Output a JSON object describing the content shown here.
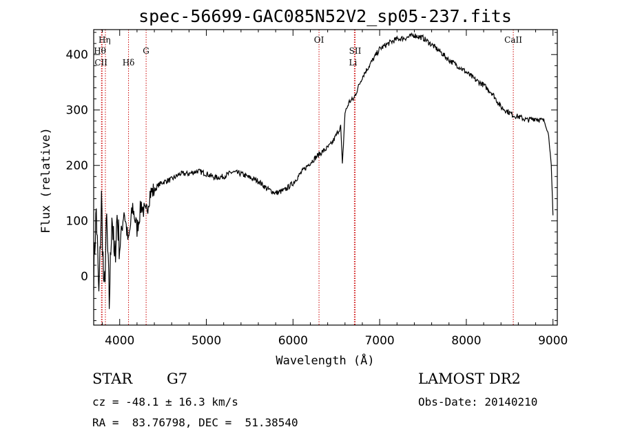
{
  "chart_data": {
    "type": "line",
    "title": "spec-56699-GAC085N52V2_sp05-237.fits",
    "xlabel": "Wavelength (Å)",
    "ylabel": "Flux (relative)",
    "xlim": [
      3700,
      9050
    ],
    "ylim": [
      -88,
      445
    ],
    "x_ticks": [
      4000,
      5000,
      6000,
      7000,
      8000,
      9000
    ],
    "y_ticks": [
      0,
      100,
      200,
      300,
      400
    ],
    "grid": false,
    "series": [
      {
        "x": [
          3700,
          3730,
          3760,
          3790,
          3820,
          3850,
          3880,
          3910,
          3940,
          3970,
          4000,
          4050,
          4100,
          4150,
          4200,
          4250,
          4300,
          4350,
          4400,
          4450,
          4500,
          4600,
          4700,
          4800,
          4900,
          5000,
          5100,
          5200,
          5300,
          5400,
          5500,
          5600,
          5700,
          5800,
          5900,
          6000,
          6100,
          6200,
          6300,
          6400,
          6450,
          6500,
          6550,
          6570,
          6600,
          6650,
          6700,
          6750,
          6800,
          6900,
          7000,
          7100,
          7200,
          7300,
          7400,
          7500,
          7600,
          7700,
          7800,
          7900,
          8000,
          8100,
          8200,
          8300,
          8400,
          8500,
          8550,
          8600,
          8700,
          8800,
          8900,
          8950,
          8980,
          9000
        ],
        "y": [
          10,
          120,
          -40,
          140,
          -40,
          100,
          -50,
          120,
          20,
          110,
          50,
          120,
          60,
          125,
          85,
          130,
          110,
          150,
          155,
          165,
          170,
          175,
          185,
          185,
          190,
          185,
          178,
          180,
          188,
          185,
          178,
          172,
          158,
          150,
          155,
          168,
          188,
          205,
          220,
          232,
          240,
          255,
          270,
          200,
          295,
          315,
          320,
          340,
          360,
          385,
          410,
          420,
          428,
          430,
          435,
          430,
          418,
          405,
          390,
          380,
          368,
          355,
          345,
          330,
          305,
          295,
          290,
          288,
          282,
          285,
          280,
          255,
          200,
          110
        ],
        "noise_note": ""
      }
    ],
    "spectral_lines": [
      {
        "label": "CII",
        "x": 3790
      },
      {
        "label": "Hθ",
        "x": 3797
      },
      {
        "label": "Hη",
        "x": 3835
      },
      {
        "label": "Hδ",
        "x": 4102
      },
      {
        "label": "G",
        "x": 4305
      },
      {
        "label": "OI",
        "x": 6300
      },
      {
        "label": "SII",
        "x": 6717
      },
      {
        "label": "Li",
        "x": 6708
      },
      {
        "label": "CaII",
        "x": 8542
      }
    ]
  },
  "info": {
    "object_class": "STAR",
    "subclass": "G7",
    "survey": "LAMOST DR2",
    "cz": "cz = -48.1 ± 16.3 km/s",
    "obs_date": "Obs-Date: 20140210",
    "coords": "RA =  83.76798, DEC =  51.38540"
  },
  "colors": {
    "line": "#000000",
    "marker": "#cc0000"
  }
}
